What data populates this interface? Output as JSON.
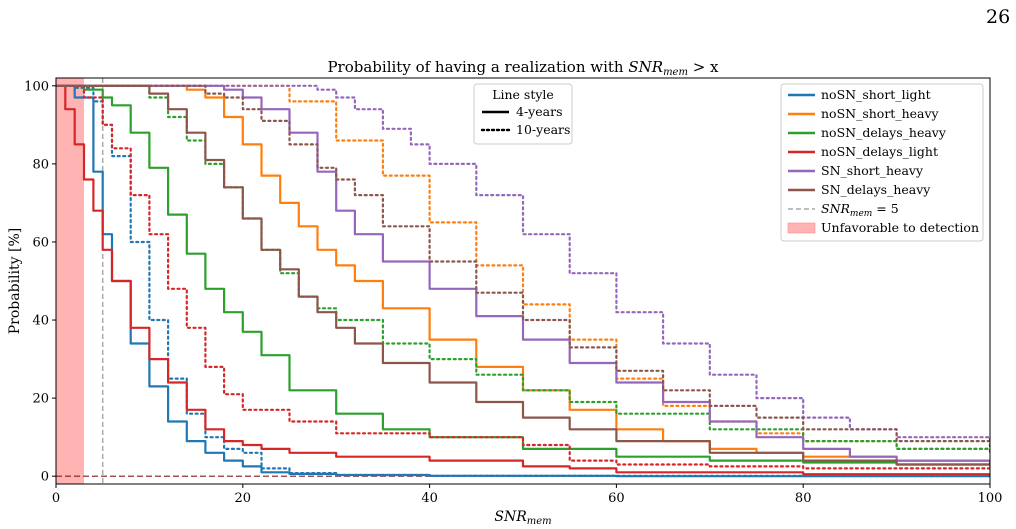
{
  "page_number": "26",
  "chart_data": {
    "type": "line",
    "title": "Probability of having a realization with SNRmem > x",
    "xlabel": "SNRmem",
    "ylabel": "Probability [%]",
    "xlim": [
      0,
      100
    ],
    "ylim": [
      -2,
      102
    ],
    "xticks": [
      0,
      20,
      40,
      60,
      80,
      100
    ],
    "yticks": [
      0,
      20,
      40,
      60,
      80,
      100
    ],
    "grid": false,
    "legend_placement": "top-right",
    "line_style_legend": {
      "title": "Line style",
      "entries": [
        {
          "label": "4-years",
          "dash": "solid"
        },
        {
          "label": "10-years",
          "dash": "dotted"
        }
      ]
    },
    "legend": [
      {
        "label": "noSN_short_light",
        "color": "#1f77b4",
        "kind": "line"
      },
      {
        "label": "noSN_short_heavy",
        "color": "#ff7f0e",
        "kind": "line"
      },
      {
        "label": "noSN_delays_heavy",
        "color": "#2ca02c",
        "kind": "line"
      },
      {
        "label": "noSN_delays_light",
        "color": "#d62728",
        "kind": "line"
      },
      {
        "label": "SN_short_heavy",
        "color": "#9467bd",
        "kind": "line"
      },
      {
        "label": "SN_delays_heavy",
        "color": "#8c564b",
        "kind": "line"
      },
      {
        "label": "SNRmem = 5",
        "color": "#aaaaaa",
        "kind": "dashed"
      },
      {
        "label": "Unfavorable to detection",
        "color": "#ffb3b3",
        "kind": "patch"
      }
    ],
    "annotations": {
      "threshold_vline_x": 5,
      "unfavorable_region_x": [
        0,
        3
      ],
      "zero_hline_y": 0
    },
    "series": [
      {
        "name": "noSN_short_light",
        "color": "#1f77b4",
        "dash": "solid",
        "x": [
          0,
          2,
          4,
          5,
          6,
          8,
          10,
          12,
          14,
          16,
          18,
          20,
          22,
          25,
          30,
          40,
          60,
          100
        ],
        "y": [
          100,
          97,
          78,
          62,
          50,
          34,
          23,
          14,
          9,
          6,
          4,
          2.5,
          1,
          0.6,
          0.3,
          0.1,
          0,
          0
        ]
      },
      {
        "name": "noSN_short_light",
        "color": "#1f77b4",
        "dash": "dotted",
        "x": [
          0,
          2,
          4,
          5,
          6,
          8,
          10,
          12,
          14,
          16,
          18,
          20,
          22,
          25,
          30,
          40,
          100
        ],
        "y": [
          100,
          99.5,
          96,
          90,
          82,
          60,
          40,
          25,
          16,
          10,
          7,
          6,
          2,
          0.8,
          0.3,
          0.1,
          0
        ]
      },
      {
        "name": "noSN_short_heavy",
        "color": "#ff7f0e",
        "dash": "solid",
        "x": [
          0,
          10,
          14,
          16,
          18,
          20,
          22,
          24,
          26,
          28,
          30,
          32,
          35,
          40,
          45,
          50,
          55,
          60,
          65,
          70,
          75,
          80,
          90,
          100
        ],
        "y": [
          100,
          100,
          99,
          97,
          92,
          85,
          77,
          70,
          64,
          58,
          54,
          50,
          43,
          35,
          28,
          22,
          17,
          12,
          9,
          7,
          6,
          5,
          4,
          3
        ]
      },
      {
        "name": "noSN_short_heavy",
        "color": "#ff7f0e",
        "dash": "dotted",
        "x": [
          0,
          20,
          25,
          30,
          35,
          40,
          45,
          50,
          55,
          60,
          65,
          70,
          75,
          80,
          90,
          100
        ],
        "y": [
          100,
          100,
          96,
          86,
          77,
          65,
          54,
          44,
          35,
          25,
          18,
          14,
          11,
          9,
          7,
          6
        ]
      },
      {
        "name": "noSN_delays_heavy",
        "color": "#2ca02c",
        "dash": "solid",
        "x": [
          0,
          3,
          5,
          6,
          8,
          10,
          12,
          14,
          16,
          18,
          20,
          22,
          25,
          30,
          35,
          40,
          50,
          60,
          70,
          80,
          90,
          100
        ],
        "y": [
          100,
          99,
          97,
          95,
          88,
          79,
          67,
          57,
          48,
          42,
          37,
          31,
          22,
          16,
          12,
          10,
          7,
          5,
          4,
          3.5,
          3,
          2.5
        ]
      },
      {
        "name": "noSN_delays_heavy",
        "color": "#2ca02c",
        "dash": "dotted",
        "x": [
          0,
          5,
          10,
          12,
          14,
          16,
          18,
          20,
          22,
          24,
          26,
          28,
          30,
          35,
          40,
          45,
          50,
          55,
          60,
          70,
          80,
          90,
          100
        ],
        "y": [
          100,
          100,
          97,
          92,
          86,
          80,
          74,
          66,
          58,
          52,
          46,
          43,
          40,
          34,
          30,
          26,
          22,
          19,
          16,
          12,
          9,
          7,
          6
        ]
      },
      {
        "name": "noSN_delays_light",
        "color": "#d62728",
        "dash": "solid",
        "x": [
          0,
          1,
          2,
          3,
          4,
          5,
          6,
          8,
          10,
          12,
          14,
          16,
          18,
          20,
          22,
          25,
          30,
          40,
          50,
          55,
          60,
          80,
          100
        ],
        "y": [
          100,
          94,
          85,
          76,
          68,
          58,
          50,
          38,
          30,
          24,
          17,
          12,
          9,
          8,
          7,
          6,
          5,
          4,
          2.5,
          2,
          1,
          0.5,
          0.2
        ]
      },
      {
        "name": "noSN_delays_light",
        "color": "#d62728",
        "dash": "dotted",
        "x": [
          0,
          3,
          5,
          6,
          8,
          10,
          12,
          14,
          16,
          18,
          20,
          25,
          30,
          40,
          50,
          55,
          60,
          70,
          80,
          100
        ],
        "y": [
          100,
          97,
          90,
          84,
          72,
          62,
          48,
          38,
          28,
          21,
          17,
          14,
          11,
          10,
          8,
          4,
          3,
          2.5,
          2,
          1.5
        ]
      },
      {
        "name": "SN_short_heavy",
        "color": "#9467bd",
        "dash": "solid",
        "x": [
          0,
          10,
          15,
          18,
          20,
          22,
          25,
          28,
          30,
          32,
          35,
          40,
          45,
          50,
          55,
          60,
          65,
          70,
          75,
          80,
          85,
          90,
          100
        ],
        "y": [
          100,
          100,
          100,
          99,
          97,
          94,
          88,
          78,
          68,
          62,
          55,
          48,
          41,
          35,
          29,
          24,
          19,
          14,
          10,
          7,
          5,
          4,
          3
        ]
      },
      {
        "name": "SN_short_heavy",
        "color": "#9467bd",
        "dash": "dotted",
        "x": [
          0,
          25,
          28,
          30,
          32,
          35,
          38,
          40,
          45,
          50,
          55,
          60,
          65,
          70,
          75,
          80,
          85,
          90,
          100
        ],
        "y": [
          100,
          100,
          99,
          97,
          94,
          89,
          85,
          80,
          72,
          62,
          52,
          42,
          34,
          26,
          20,
          15,
          12,
          10,
          8
        ]
      },
      {
        "name": "SN_delays_heavy",
        "color": "#8c564b",
        "dash": "solid",
        "x": [
          0,
          8,
          10,
          12,
          14,
          16,
          18,
          20,
          22,
          24,
          26,
          28,
          30,
          32,
          35,
          40,
          45,
          50,
          55,
          60,
          70,
          80,
          90,
          100
        ],
        "y": [
          100,
          100,
          98,
          94,
          88,
          81,
          74,
          66,
          58,
          53,
          46,
          42,
          38,
          34,
          29,
          24,
          19,
          15,
          12,
          9,
          6,
          4,
          3,
          3
        ]
      },
      {
        "name": "SN_delays_heavy",
        "color": "#8c564b",
        "dash": "dotted",
        "x": [
          0,
          14,
          16,
          18,
          20,
          22,
          25,
          28,
          30,
          32,
          35,
          40,
          45,
          50,
          55,
          60,
          65,
          70,
          75,
          80,
          90,
          100
        ],
        "y": [
          100,
          100,
          98,
          97,
          94,
          91,
          85,
          79,
          76,
          72,
          64,
          55,
          47,
          40,
          33,
          27,
          22,
          18,
          15,
          12,
          9,
          7
        ]
      }
    ]
  }
}
